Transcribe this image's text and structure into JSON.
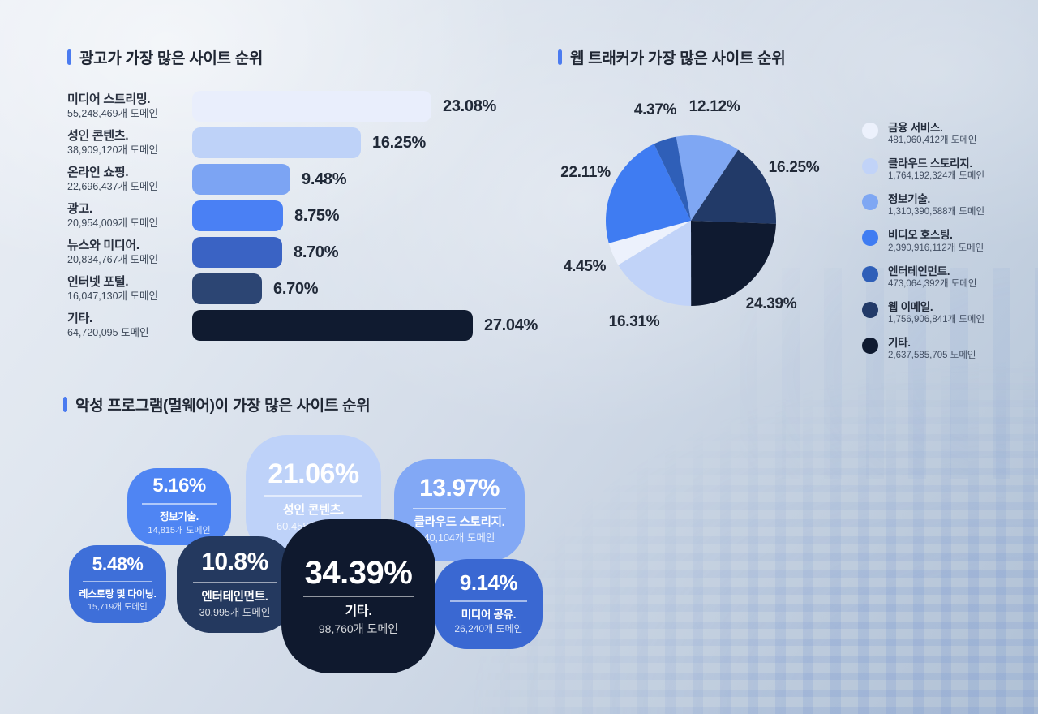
{
  "chart_data": [
    {
      "type": "bar",
      "title": "광고가 가장 많은 사이트 순위",
      "orientation": "horizontal",
      "xlim": [
        0,
        27.04
      ],
      "grid": false,
      "rows": [
        {
          "category": "미디어 스트리밍.",
          "count": "55,248,469개 도메인",
          "pct": "23.08%",
          "value": 23.08,
          "color": "#e9eefc"
        },
        {
          "category": "성인 콘텐츠.",
          "count": "38,909,120개 도메인",
          "pct": "16.25%",
          "value": 16.25,
          "color": "#bed2f8"
        },
        {
          "category": "온라인 쇼핑.",
          "count": "22,696,437개 도메인",
          "pct": "9.48%",
          "value": 9.48,
          "color": "#7ca4f3"
        },
        {
          "category": "광고.",
          "count": "20,954,009개 도메인",
          "pct": "8.75%",
          "value": 8.75,
          "color": "#4a80f4"
        },
        {
          "category": "뉴스와 미디어.",
          "count": "20,834,767개 도메인",
          "pct": "8.70%",
          "value": 8.7,
          "color": "#3a63c4"
        },
        {
          "category": "인터넷 포털.",
          "count": "16,047,130개 도메인",
          "pct": "6.70%",
          "value": 6.7,
          "color": "#2c4573"
        },
        {
          "category": "기타.",
          "count": "64,720,095 도메인",
          "pct": "27.04%",
          "value": 27.04,
          "color": "#101b30"
        }
      ]
    },
    {
      "type": "pie",
      "title": "웹 트래커가 가장 많은 사이트 순위",
      "legend_position": "right",
      "start_angle_deg": -10,
      "slices": [
        {
          "label": "금융 서비스.",
          "count": "481,060,412개 도메인",
          "pct": "4.45%",
          "value": 4.45,
          "color": "#ecf1fc"
        },
        {
          "label": "클라우드 스토리지.",
          "count": "1,764,192,324개 도메인",
          "pct": "16.31%",
          "value": 16.31,
          "color": "#c1d3f8"
        },
        {
          "label": "정보기술.",
          "count": "1,310,390,588개 도메인",
          "pct": "12.12%",
          "value": 12.12,
          "color": "#7fa7f3"
        },
        {
          "label": "비디오 호스팅.",
          "count": "2,390,916,112개 도메인",
          "pct": "22.11%",
          "value": 22.11,
          "color": "#3f7cf2"
        },
        {
          "label": "엔터테인먼트.",
          "count": "473,064,392개 도메인",
          "pct": "4.37%",
          "value": 4.37,
          "color": "#2f5fb8"
        },
        {
          "label": "웹 이메일.",
          "count": "1,756,906,841개 도메인",
          "pct": "16.25%",
          "value": 16.25,
          "color": "#223a68"
        },
        {
          "label": "기타.",
          "count": "2,637,585,705 도메인",
          "pct": "24.39%",
          "value": 24.39,
          "color": "#0f1a30"
        }
      ],
      "draw_order_clockwise_from_top": [
        2,
        5,
        6,
        1,
        0,
        3,
        4
      ]
    },
    {
      "type": "bubble",
      "title": "악성 프로그램(멀웨어)이 가장 많은 사이트 순위",
      "bubbles": [
        {
          "label": "정보기술.",
          "count": "14,815개 도메인",
          "pct": "5.16%",
          "value": 5.16,
          "color": "#4f85f3"
        },
        {
          "label": "성인 콘텐츠.",
          "count": "60,458개 도메인",
          "pct": "21.06%",
          "value": 21.06,
          "color": "#bed2f9"
        },
        {
          "label": "클라우드 스토리지.",
          "count": "40,104개 도메인",
          "pct": "13.97%",
          "value": 13.97,
          "color": "#82a8f5"
        },
        {
          "label": "레스토랑 및 다이닝.",
          "count": "15,719개 도메인",
          "pct": "5.48%",
          "value": 5.48,
          "color": "#3e6fd9"
        },
        {
          "label": "엔터테인먼트.",
          "count": "30,995개 도메인",
          "pct": "10.8%",
          "value": 10.8,
          "color": "#24395f"
        },
        {
          "label": "기타.",
          "count": "98,760개 도메인",
          "pct": "34.39%",
          "value": 34.39,
          "color": "#0f192e"
        },
        {
          "label": "미디어 공유.",
          "count": "26,240개 도메인",
          "pct": "9.14%",
          "value": 9.14,
          "color": "#3a68d2"
        }
      ]
    }
  ],
  "accent_colors": {
    "title_marker": "#4b7bf0",
    "ink": "#202734",
    "subtext": "#3e4959"
  }
}
